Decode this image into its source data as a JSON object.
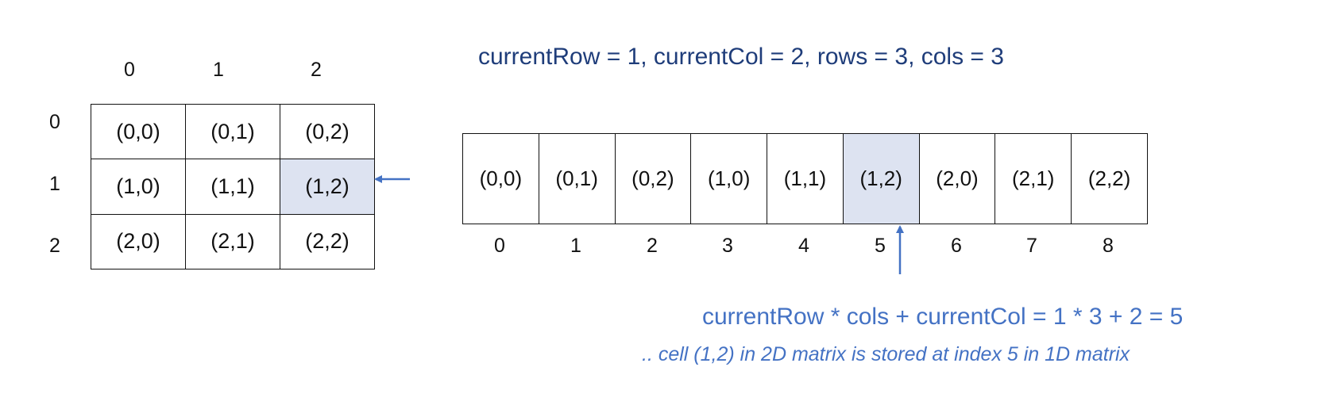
{
  "matrix2d": {
    "col_labels": [
      "0",
      "1",
      "2"
    ],
    "row_labels": [
      "0",
      "1",
      "2"
    ],
    "cells": [
      [
        "(0,0)",
        "(0,1)",
        "(0,2)"
      ],
      [
        "(1,0)",
        "(1,1)",
        "(1,2)"
      ],
      [
        "(2,0)",
        "(2,1)",
        "(2,2)"
      ]
    ],
    "highlight": "(1,2)"
  },
  "array1d": {
    "cells": [
      "(0,0)",
      "(0,1)",
      "(0,2)",
      "(1,0)",
      "(1,1)",
      "(1,2)",
      "(2,0)",
      "(2,1)",
      "(2,2)"
    ],
    "indices": [
      "0",
      "1",
      "2",
      "3",
      "4",
      "5",
      "6",
      "7",
      "8"
    ],
    "highlight_index": 5
  },
  "variables_text": "currentRow = 1, currentCol = 2, rows = 3, cols  = 3",
  "formula_text": "currentRow * cols + currentCol =  1 * 3 + 2 = 5",
  "note_text": ".. cell (1,2) in 2D matrix is stored at index 5 in 1D matrix",
  "colors": {
    "highlight": "#dde3f1",
    "accent": "#4472c4",
    "dark_blue": "#1f3d7a"
  }
}
